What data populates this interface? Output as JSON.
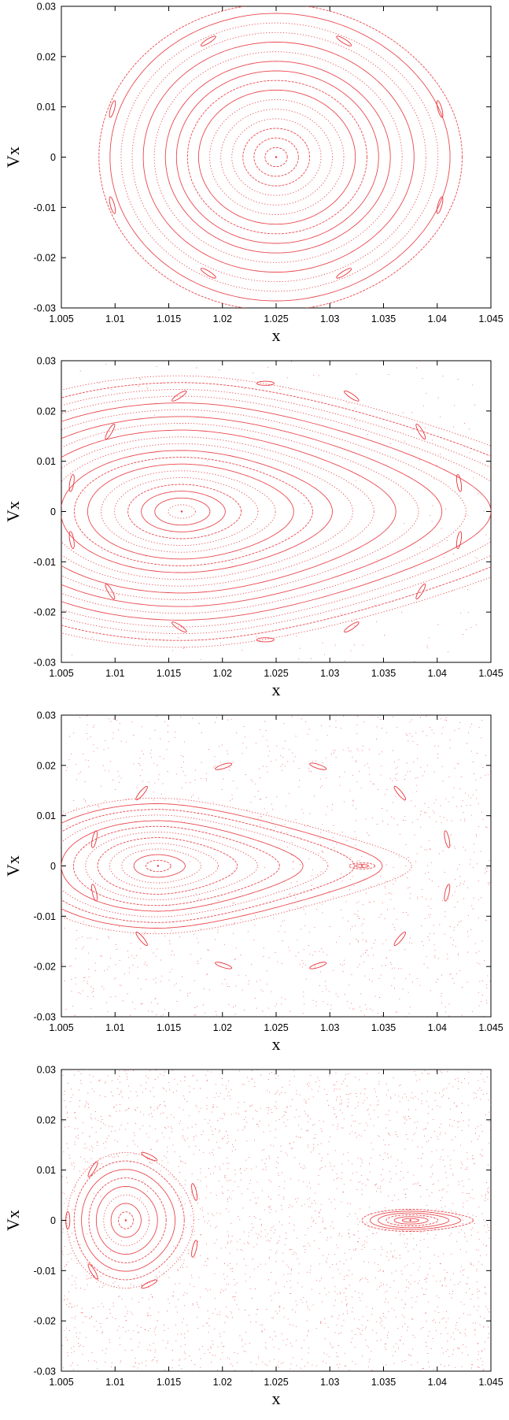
{
  "colors": {
    "points": "#e8333a",
    "axes": "#000000",
    "background": "#ffffff"
  },
  "chart_data": [
    {
      "type": "scatter",
      "title": "",
      "xlabel": "x",
      "ylabel": "Vx",
      "xlim": [
        1.005,
        1.045
      ],
      "ylim": [
        -0.03,
        0.03
      ],
      "x_ticks": [
        "1.005",
        "1.01",
        "1.015",
        "1.02",
        "1.025",
        "1.03",
        "1.035",
        "1.04",
        "1.045"
      ],
      "y_ticks": [
        "0.03",
        "0.02",
        "0.01",
        "0",
        "-0.01",
        "-0.02",
        "-0.03"
      ],
      "grid": false,
      "legend": "none",
      "islands": [
        {
          "center_x": 1.025,
          "center_v": 0.0,
          "radius_x": 0.0165,
          "radius_v": 0.0305,
          "curve_count": 16,
          "asymmetry": 0.05
        }
      ],
      "resonance_chains": [
        {
          "center_x": 1.025,
          "center_v": 0.0,
          "radius_x": 0.0165,
          "radius_v": 0.025,
          "count": 8
        }
      ],
      "chaos_fraction": 0.0
    },
    {
      "type": "scatter",
      "title": "",
      "xlabel": "x",
      "ylabel": "Vx",
      "xlim": [
        1.005,
        1.045
      ],
      "ylim": [
        -0.03,
        0.03
      ],
      "x_ticks": [
        "1.005",
        "1.01",
        "1.015",
        "1.02",
        "1.025",
        "1.03",
        "1.035",
        "1.04",
        "1.045"
      ],
      "y_ticks": [
        "0.03",
        "0.02",
        "0.01",
        "0",
        "-0.01",
        "-0.02",
        "-0.03"
      ],
      "grid": false,
      "legend": "none",
      "islands": [
        {
          "center_x": 1.0162,
          "center_v": 0.0,
          "radius_x": 0.025,
          "radius_v": 0.027,
          "curve_count": 20,
          "asymmetry": 0.55
        }
      ],
      "resonance_chains": [
        {
          "center_x": 1.024,
          "center_v": 0.0,
          "radius_x": 0.0185,
          "radius_v": 0.0255,
          "count": 14
        }
      ],
      "chaos_fraction": 0.12
    },
    {
      "type": "scatter",
      "title": "",
      "xlabel": "x",
      "ylabel": "Vx",
      "xlim": [
        1.005,
        1.045
      ],
      "ylim": [
        -0.03,
        0.03
      ],
      "x_ticks": [
        "1.005",
        "1.01",
        "1.015",
        "1.02",
        "1.025",
        "1.03",
        "1.035",
        "1.04",
        "1.045"
      ],
      "y_ticks": [
        "0.03",
        "0.02",
        "0.01",
        "0",
        "-0.01",
        "-0.02",
        "-0.03"
      ],
      "grid": false,
      "legend": "none",
      "islands": [
        {
          "center_x": 1.014,
          "center_v": 0.0,
          "radius_x": 0.0135,
          "radius_v": 0.0135,
          "curve_count": 12,
          "asymmetry": 0.75
        },
        {
          "center_x": 1.033,
          "center_v": 0.0,
          "radius_x": 0.0012,
          "radius_v": 0.0006,
          "curve_count": 2,
          "asymmetry": 0.0
        }
      ],
      "resonance_chains": [
        {
          "center_x": 1.0245,
          "center_v": 0.0,
          "radius_x": 0.017,
          "radius_v": 0.0205,
          "count": 12
        }
      ],
      "chaos_fraction": 0.55
    },
    {
      "type": "scatter",
      "title": "",
      "xlabel": "x",
      "ylabel": "Vx",
      "xlim": [
        1.005,
        1.045
      ],
      "ylim": [
        -0.03,
        0.03
      ],
      "x_ticks": [
        "1.005",
        "1.01",
        "1.015",
        "1.02",
        "1.025",
        "1.03",
        "1.035",
        "1.04",
        "1.045"
      ],
      "y_ticks": [
        "0.03",
        "0.02",
        "0.01",
        "0",
        "-0.01",
        "-0.02",
        "-0.03"
      ],
      "grid": false,
      "legend": "none",
      "islands": [
        {
          "center_x": 1.011,
          "center_v": 0.0,
          "radius_x": 0.0055,
          "radius_v": 0.0135,
          "curve_count": 8,
          "asymmetry": 0.15
        },
        {
          "center_x": 1.0375,
          "center_v": 0.0,
          "radius_x": 0.0045,
          "radius_v": 0.0022,
          "curve_count": 6,
          "asymmetry": 0.3
        }
      ],
      "resonance_chains": [
        {
          "center_x": 1.0118,
          "center_v": 0.0,
          "radius_x": 0.0062,
          "radius_v": 0.013,
          "count": 7
        }
      ],
      "chaos_fraction": 1.0
    }
  ]
}
